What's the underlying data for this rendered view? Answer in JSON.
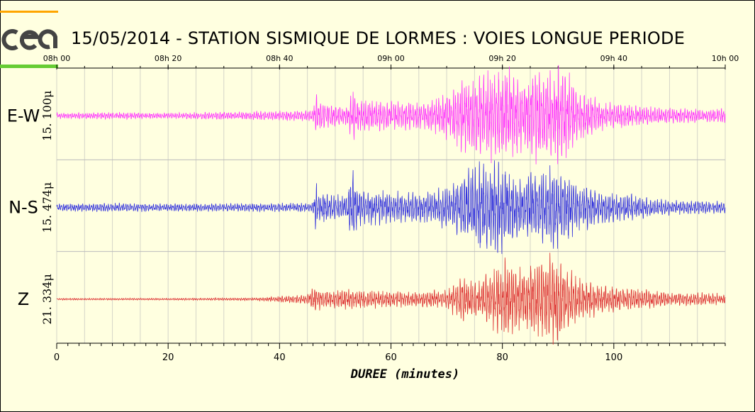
{
  "title": "15/05/2014  -  STATION SISMIQUE DE LORMES : VOIES LONGUE PERIODE",
  "logo_text": "cea",
  "colors": {
    "background": "#ffffe0",
    "grid": "#d4d4c8",
    "logo_top_bar": "#ffa500",
    "logo_bottom_bar": "#66cc33"
  },
  "chart_data": {
    "type": "line",
    "title": "15/05/2014  -  STATION SISMIQUE DE LORMES : VOIES LONGUE PERIODE",
    "xlabel": "DUREE (minutes)",
    "xlim": [
      0,
      120
    ],
    "x_ticks": [
      0,
      20,
      40,
      60,
      80,
      100
    ],
    "top_time_ticks": [
      "08h 00",
      "08h 20",
      "08h 40",
      "09h 00",
      "09h 20",
      "09h 40",
      "10h 00"
    ],
    "grid": true,
    "series": [
      {
        "name": "E-W",
        "scale_label": "15. 100μ",
        "color": "#ff33ff",
        "envelope": [
          [
            0,
            0.06
          ],
          [
            10,
            0.07
          ],
          [
            20,
            0.06
          ],
          [
            30,
            0.08
          ],
          [
            40,
            0.1
          ],
          [
            46,
            0.12
          ],
          [
            46.4,
            0.55
          ],
          [
            47,
            0.3
          ],
          [
            52,
            0.2
          ],
          [
            53.4,
            0.6
          ],
          [
            54,
            0.35
          ],
          [
            60,
            0.3
          ],
          [
            66,
            0.3
          ],
          [
            69,
            0.4
          ],
          [
            72,
            0.7
          ],
          [
            75,
            0.8
          ],
          [
            78,
            0.9
          ],
          [
            81,
            0.95
          ],
          [
            84,
            0.75
          ],
          [
            86,
            1.0
          ],
          [
            88,
            0.9
          ],
          [
            90,
            1.0
          ],
          [
            92,
            0.85
          ],
          [
            94,
            0.5
          ],
          [
            98,
            0.3
          ],
          [
            105,
            0.2
          ],
          [
            112,
            0.15
          ],
          [
            120,
            0.15
          ]
        ]
      },
      {
        "name": "N-S",
        "scale_label": "15. 474μ",
        "color": "#3333dd",
        "envelope": [
          [
            0,
            0.08
          ],
          [
            10,
            0.09
          ],
          [
            20,
            0.08
          ],
          [
            30,
            0.08
          ],
          [
            40,
            0.09
          ],
          [
            46,
            0.1
          ],
          [
            46.4,
            0.6
          ],
          [
            47,
            0.3
          ],
          [
            52,
            0.25
          ],
          [
            53.3,
            0.8
          ],
          [
            54,
            0.4
          ],
          [
            58,
            0.35
          ],
          [
            63,
            0.3
          ],
          [
            68,
            0.35
          ],
          [
            72,
            0.55
          ],
          [
            74,
            0.85
          ],
          [
            76,
            1.0
          ],
          [
            78,
            0.9
          ],
          [
            79,
            1.0
          ],
          [
            81,
            0.8
          ],
          [
            84,
            0.6
          ],
          [
            86,
            0.8
          ],
          [
            88,
            0.75
          ],
          [
            89,
            0.95
          ],
          [
            91,
            0.75
          ],
          [
            94,
            0.5
          ],
          [
            98,
            0.35
          ],
          [
            104,
            0.25
          ],
          [
            110,
            0.15
          ],
          [
            120,
            0.12
          ]
        ]
      },
      {
        "name": "Z",
        "scale_label": "21. 334μ",
        "color": "#dd3333",
        "envelope": [
          [
            0,
            0.02
          ],
          [
            10,
            0.02
          ],
          [
            20,
            0.02
          ],
          [
            30,
            0.025
          ],
          [
            36,
            0.03
          ],
          [
            40,
            0.06
          ],
          [
            45,
            0.1
          ],
          [
            46.5,
            0.3
          ],
          [
            48,
            0.2
          ],
          [
            53,
            0.2
          ],
          [
            58,
            0.18
          ],
          [
            64,
            0.15
          ],
          [
            70,
            0.2
          ],
          [
            73,
            0.5
          ],
          [
            75,
            0.35
          ],
          [
            78,
            0.6
          ],
          [
            81,
            0.85
          ],
          [
            83,
            0.7
          ],
          [
            86,
            0.8
          ],
          [
            88,
            0.9
          ],
          [
            89,
            1.0
          ],
          [
            90,
            0.95
          ],
          [
            92,
            0.6
          ],
          [
            95,
            0.4
          ],
          [
            98,
            0.3
          ],
          [
            104,
            0.22
          ],
          [
            110,
            0.15
          ],
          [
            120,
            0.12
          ]
        ]
      }
    ]
  }
}
